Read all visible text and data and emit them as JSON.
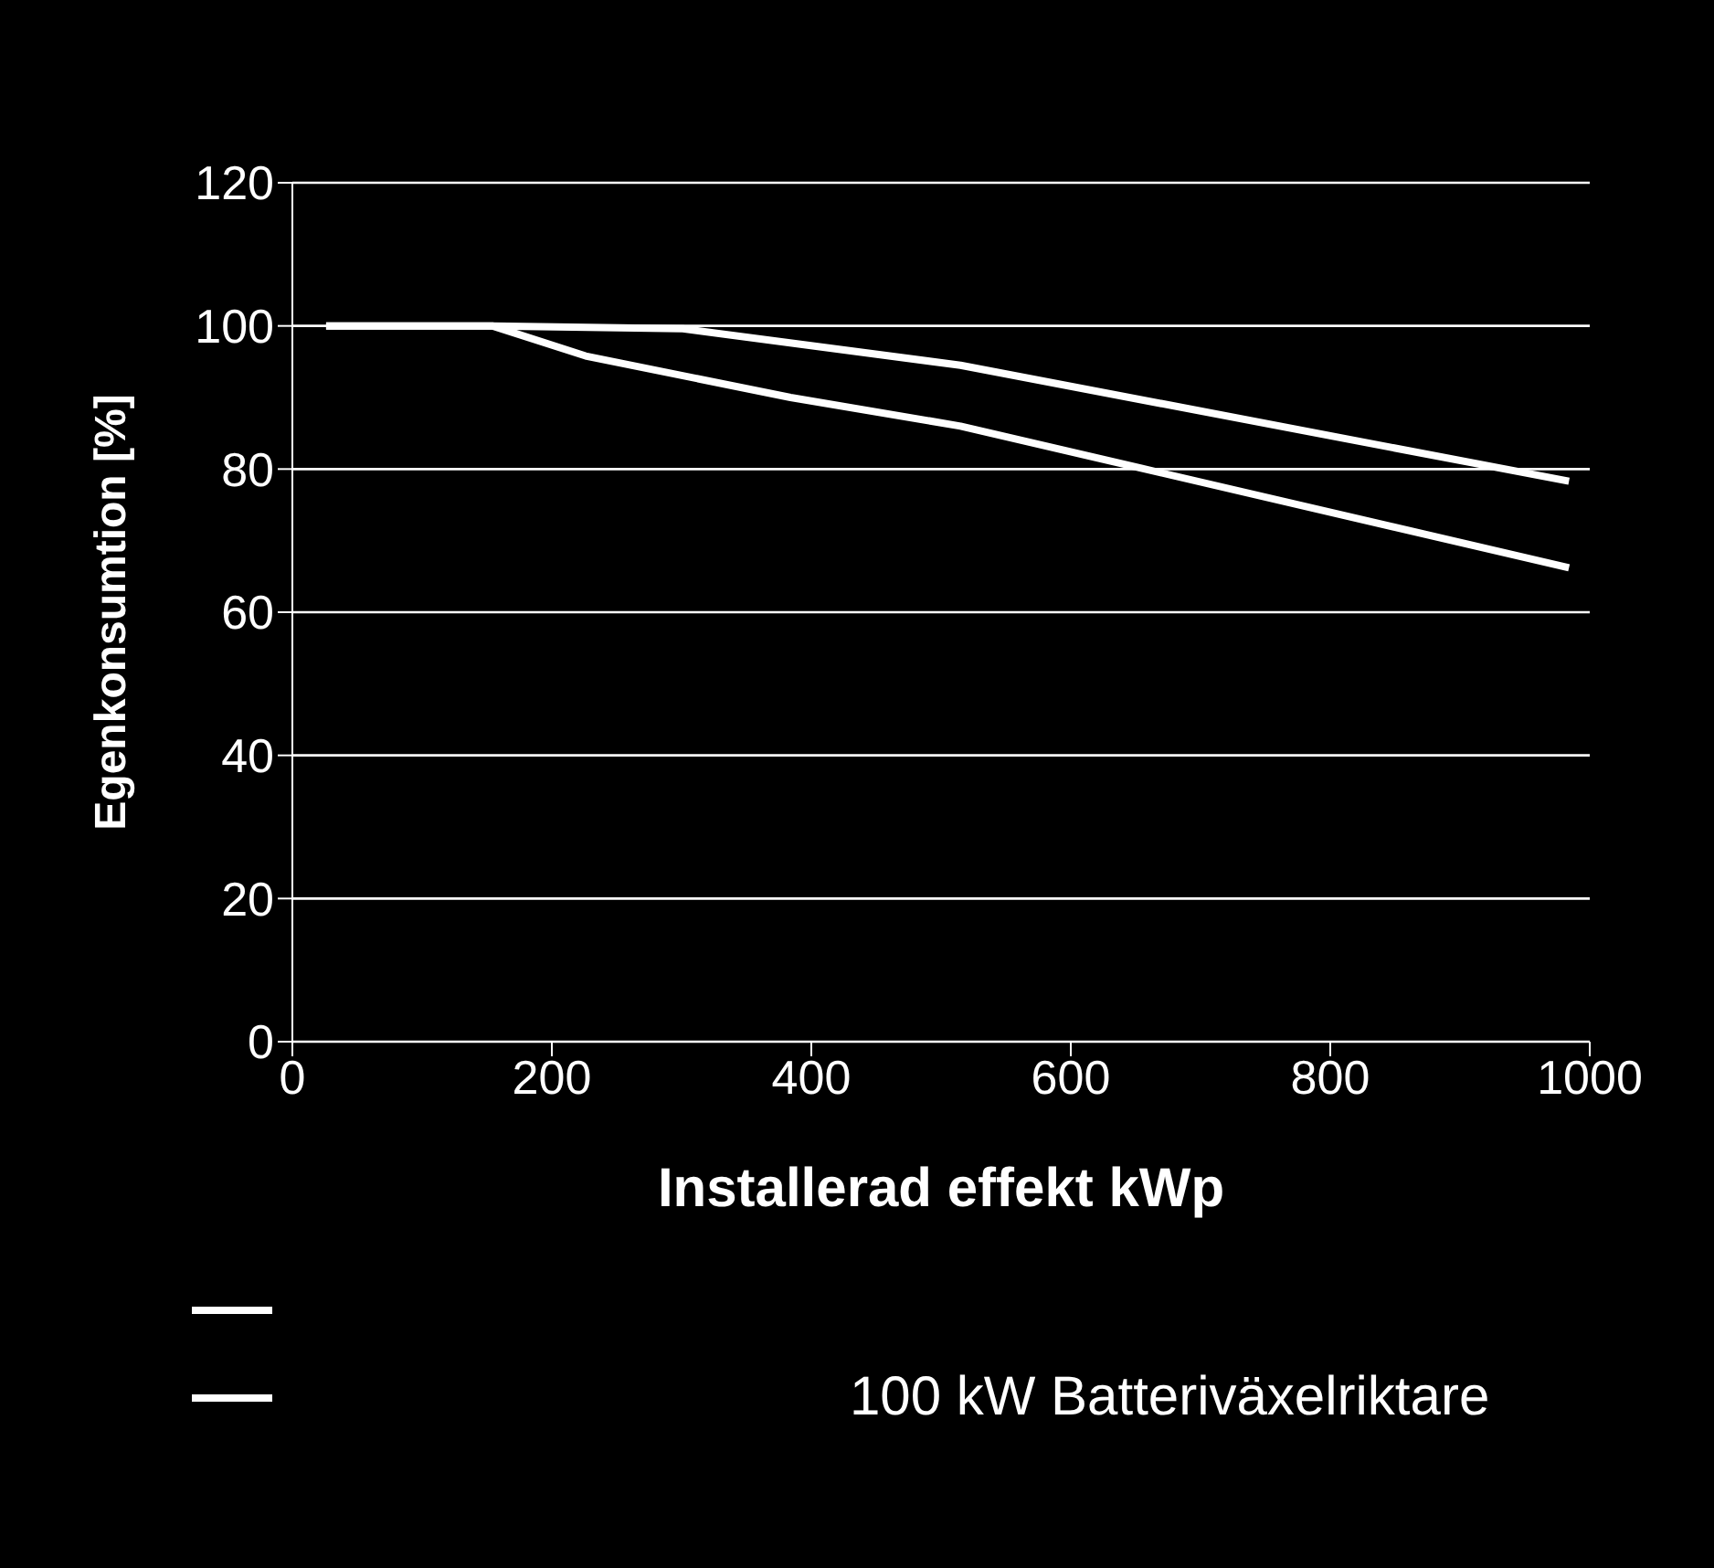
{
  "chart_data": {
    "type": "line",
    "xlabel": "Installerad effekt kWp",
    "ylabel": "Egenkonsumtion [%]",
    "xlim": [
      0,
      1000
    ],
    "xticks": [
      0,
      200,
      400,
      600,
      800,
      1000
    ],
    "ylim": [
      0,
      120
    ],
    "yticks": [
      0,
      20,
      40,
      60,
      80,
      100,
      120
    ],
    "grid": "y",
    "legend": "bottom",
    "marker": "none",
    "line_style": "solid",
    "series": [
      {
        "color": "#ffffff",
        "x": [
          26,
          154,
          226,
          384,
          515,
          984
        ],
        "values": [
          100,
          100,
          95.8,
          90,
          86,
          66.2
        ]
      },
      {
        "name": "100 kW Batteriväxelriktare",
        "color": "#ffffff",
        "x": [
          26,
          154,
          301,
          515,
          984
        ],
        "values": [
          100,
          100,
          99.6,
          94.5,
          78.3
        ]
      }
    ]
  }
}
